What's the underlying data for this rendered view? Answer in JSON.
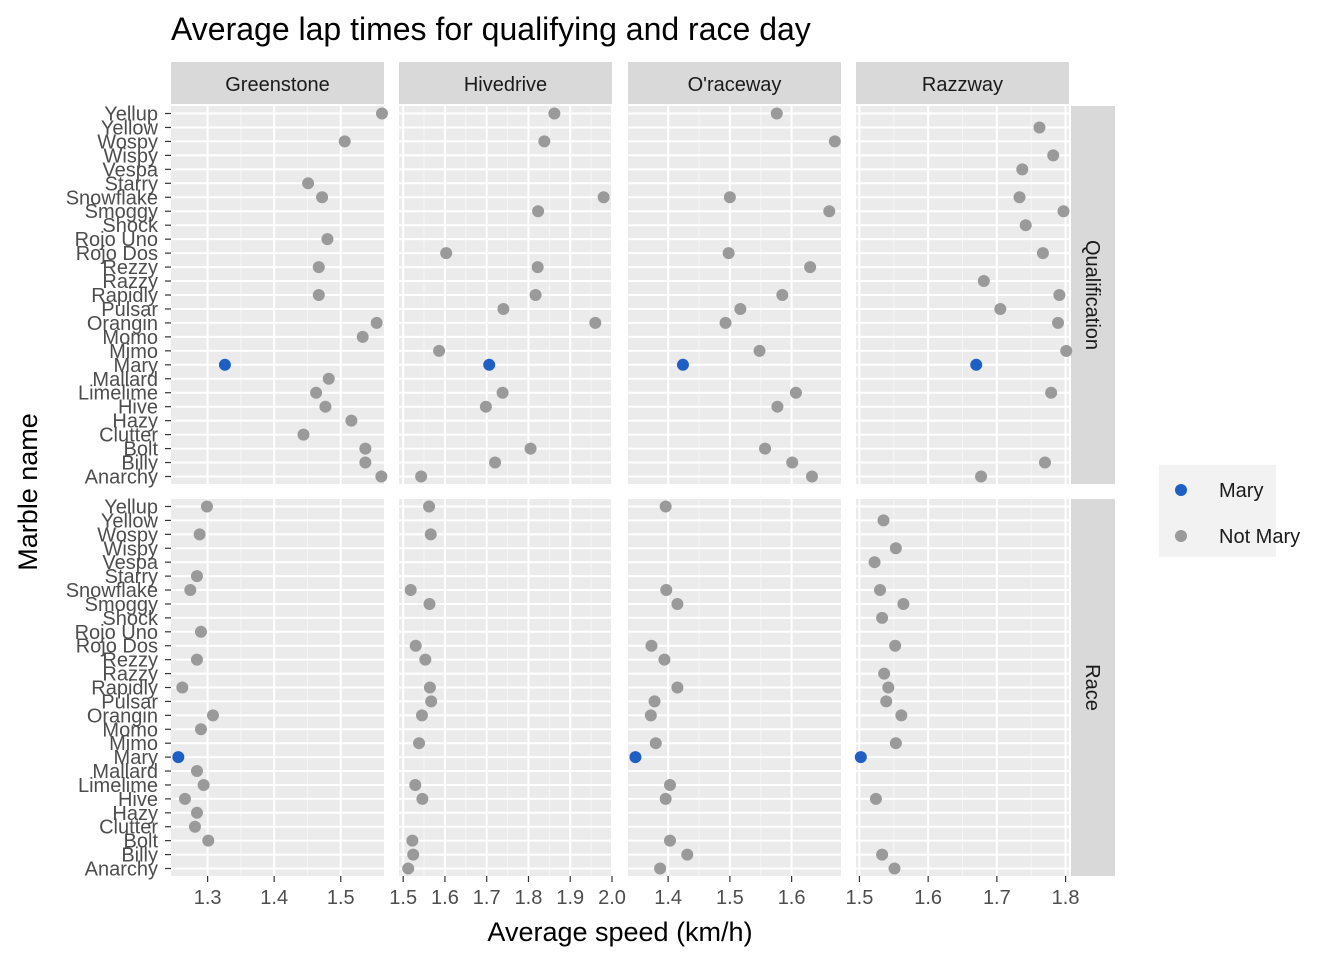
{
  "chart_data": {
    "type": "scatter",
    "title": "Average lap times for qualifying and race day",
    "xlabel": "Average speed (km/h)",
    "ylabel": "Marble name",
    "grid": true,
    "legend_position": "right",
    "legend": [
      {
        "label": "Mary",
        "color": "#1f5fc4"
      },
      {
        "label": "Not Mary",
        "color": "#9a9a9a"
      }
    ],
    "colors": {
      "mary": "#1f5fc4",
      "not_mary": "#9a9a9a",
      "panel_bg": "#ebebeb",
      "strip_bg": "#d9d9d9"
    },
    "marbles": [
      "Anarchy",
      "Billy",
      "Bolt",
      "Clutter",
      "Hazy",
      "Hive",
      "Limelime",
      "Mallard",
      "Mary",
      "Mimo",
      "Momo",
      "Orangin",
      "Pulsar",
      "Rapidly",
      "Razzy",
      "Rezzy",
      "Rojo Dos",
      "Rojo Uno",
      "Shock",
      "Smoggy",
      "Snowflake",
      "Starry",
      "Vespa",
      "Wispy",
      "Wospy",
      "Yellow",
      "Yellup"
    ],
    "columns": [
      {
        "track": "Greenstone",
        "xlim": [
          1.245,
          1.565
        ],
        "ticks": [
          1.3,
          1.4,
          1.5
        ],
        "tick_labels": [
          "1.3",
          "1.4",
          "1.5"
        ]
      },
      {
        "track": "Hivedrive",
        "xlim": [
          1.49,
          2.0
        ],
        "ticks": [
          1.5,
          1.6,
          1.7,
          1.8,
          1.9,
          2.0
        ],
        "tick_labels": [
          "1.5",
          "1.6",
          "1.7",
          "1.8",
          "1.9",
          "2.0"
        ]
      },
      {
        "track": "O'raceway",
        "xlim": [
          1.335,
          1.68
        ],
        "ticks": [
          1.4,
          1.5,
          1.6
        ],
        "tick_labels": [
          "1.4",
          "1.5",
          "1.6"
        ]
      },
      {
        "track": "Razzway",
        "xlim": [
          1.495,
          1.805
        ],
        "ticks": [
          1.5,
          1.6,
          1.7,
          1.8
        ],
        "tick_labels": [
          "1.5",
          "1.6",
          "1.7",
          "1.8"
        ]
      }
    ],
    "rows": [
      {
        "label": "Qualification",
        "points": [
          [
            1.561,
            1.543,
            1.633,
            1.677
          ],
          [
            1.537,
            1.72,
            1.601,
            1.77
          ],
          [
            1.537,
            1.805,
            1.557,
            null
          ],
          [
            1.444,
            null,
            null,
            null
          ],
          [
            1.516,
            null,
            null,
            null
          ],
          [
            1.477,
            1.698,
            1.577,
            null
          ],
          [
            1.463,
            1.738,
            1.607,
            1.779
          ],
          [
            1.482,
            null,
            null,
            null
          ],
          [
            1.326,
            1.706,
            1.424,
            1.67
          ],
          [
            null,
            1.586,
            1.548,
            1.801
          ],
          [
            1.533,
            null,
            null,
            null
          ],
          [
            1.554,
            1.96,
            1.493,
            1.789
          ],
          [
            null,
            1.74,
            1.517,
            1.705
          ],
          [
            1.467,
            1.817,
            1.585,
            1.791
          ],
          [
            null,
            null,
            null,
            1.681
          ],
          [
            1.467,
            1.822,
            1.63,
            null
          ],
          [
            null,
            1.603,
            1.498,
            1.767
          ],
          [
            1.48,
            null,
            null,
            null
          ],
          [
            null,
            null,
            null,
            1.742
          ],
          [
            null,
            1.823,
            1.661,
            1.797
          ],
          [
            1.472,
            1.98,
            1.5,
            1.733
          ],
          [
            1.451,
            null,
            null,
            null
          ],
          [
            null,
            null,
            null,
            1.737
          ],
          [
            null,
            null,
            null,
            1.782
          ],
          [
            1.506,
            1.838,
            1.67,
            null
          ],
          [
            null,
            null,
            null,
            1.762
          ],
          [
            1.562,
            1.862,
            1.576,
            null
          ]
        ]
      },
      {
        "label": "Race",
        "points": [
          [
            null,
            1.512,
            1.387,
            1.551
          ],
          [
            null,
            1.524,
            1.431,
            1.533
          ],
          [
            1.301,
            1.522,
            1.403,
            null
          ],
          [
            1.281,
            null,
            null,
            null
          ],
          [
            1.284,
            null,
            null,
            null
          ],
          [
            1.266,
            1.546,
            1.396,
            1.524
          ],
          [
            1.294,
            1.529,
            1.403,
            null
          ],
          [
            1.284,
            null,
            null,
            null
          ],
          [
            1.256,
            null,
            1.347,
            1.502
          ],
          [
            null,
            1.538,
            1.38,
            1.553
          ],
          [
            1.29,
            null,
            null,
            null
          ],
          [
            1.308,
            1.545,
            1.372,
            1.561
          ],
          [
            null,
            1.567,
            1.378,
            1.539
          ],
          [
            1.262,
            1.564,
            1.415,
            1.542
          ],
          [
            null,
            null,
            null,
            1.536
          ],
          [
            1.284,
            1.553,
            1.394,
            null
          ],
          [
            null,
            1.53,
            1.373,
            1.552
          ],
          [
            1.29,
            null,
            null,
            null
          ],
          [
            null,
            null,
            null,
            1.533
          ],
          [
            null,
            1.563,
            1.415,
            1.564
          ],
          [
            1.274,
            1.518,
            1.397,
            1.53
          ],
          [
            1.284,
            null,
            null,
            null
          ],
          [
            null,
            null,
            null,
            1.522
          ],
          [
            null,
            null,
            null,
            1.553
          ],
          [
            1.288,
            1.566,
            null,
            null
          ],
          [
            null,
            null,
            null,
            1.535
          ],
          [
            1.299,
            1.562,
            1.396,
            null
          ]
        ]
      }
    ]
  }
}
